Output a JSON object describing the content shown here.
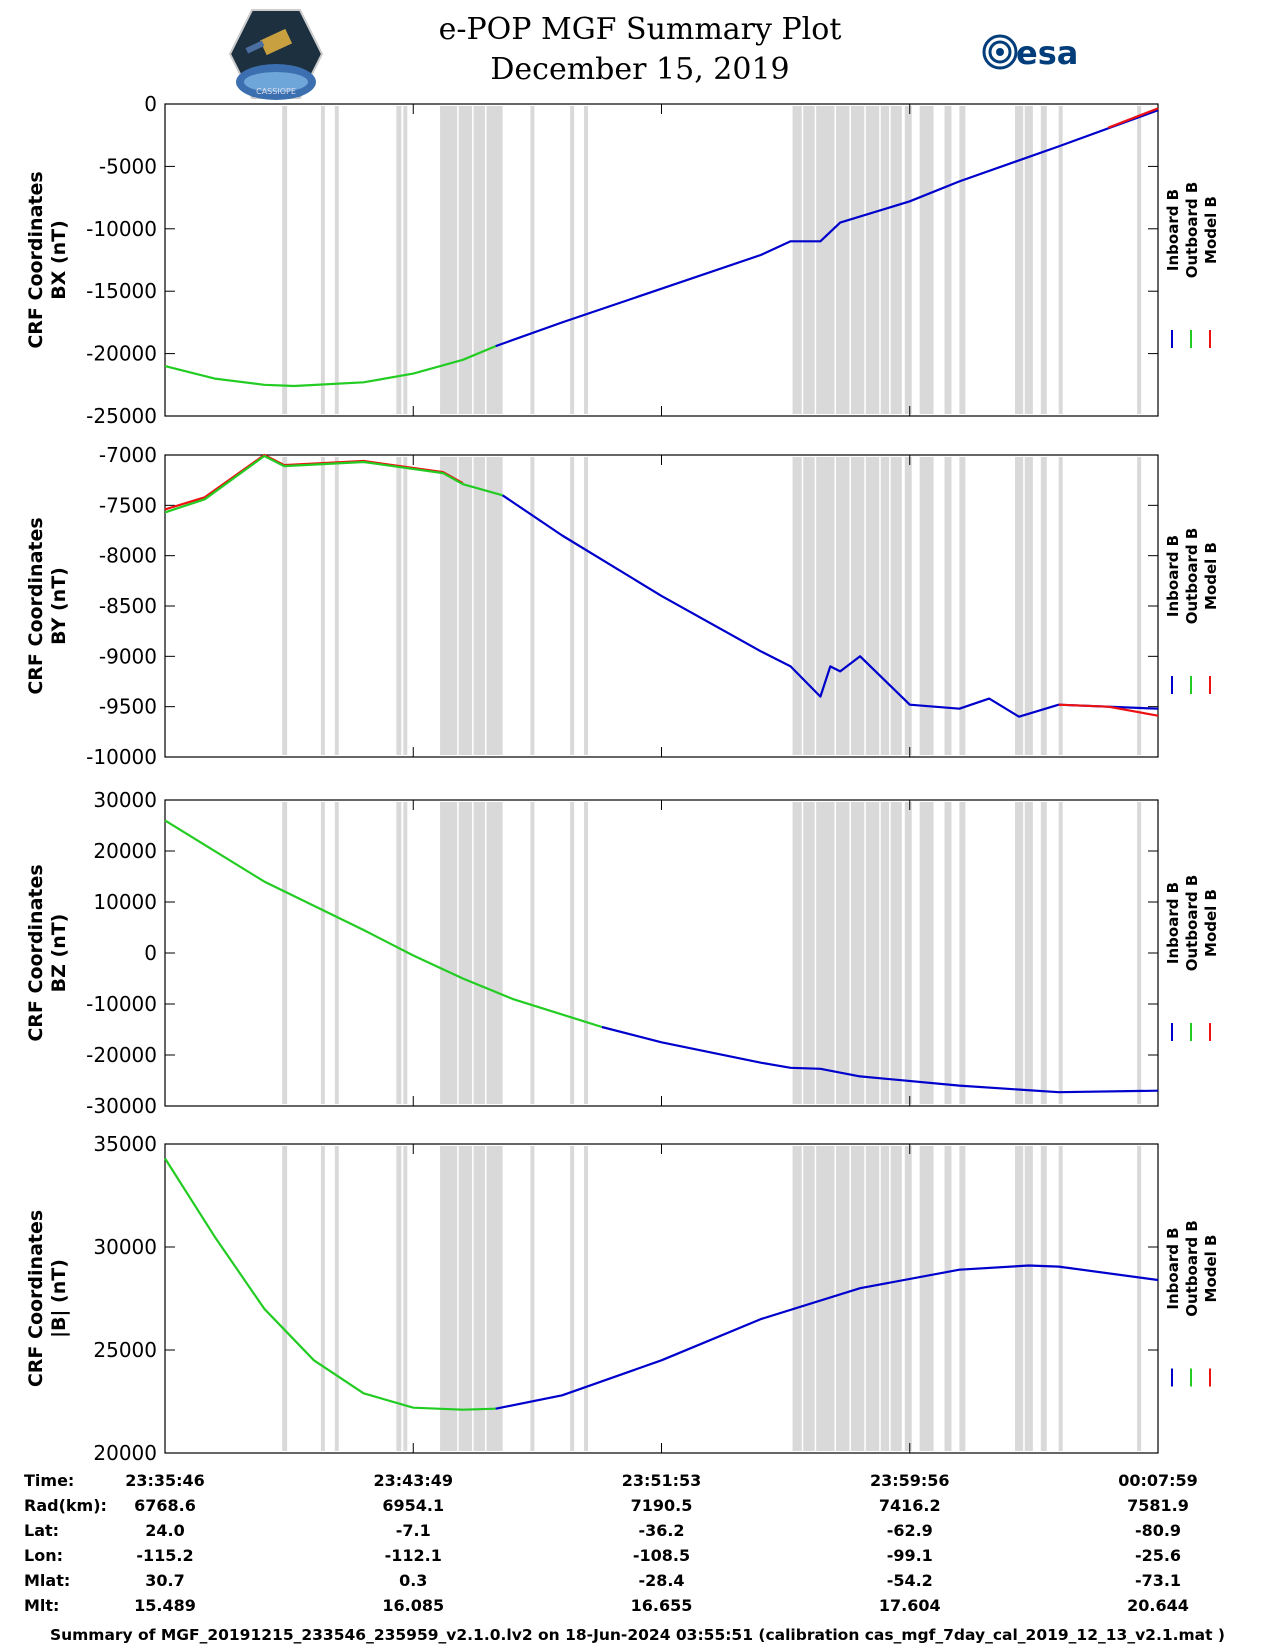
{
  "title": "e-POP MGF Summary Plot",
  "subtitle": "December 15, 2019",
  "logo_left_label": "CASSIOPE",
  "logo_right_label": "esa",
  "legend": {
    "labels": [
      "Inboard B",
      "Outboard B",
      "Model B"
    ],
    "colors": [
      "#0000cc",
      "#22cc22",
      "#ee1111"
    ]
  },
  "gap_color": "#d9d9d9",
  "chart_data": [
    {
      "type": "line",
      "ylabel_line1": "CRF Coordinates",
      "ylabel_line2": "BX (nT)",
      "ylim": [
        -25000,
        0
      ],
      "yticks": [
        "0",
        "-5000",
        "-10000",
        "-15000",
        "-20000",
        "-25000"
      ],
      "ytick_values": [
        0,
        -5000,
        -10000,
        -15000,
        -20000,
        -25000
      ],
      "series": [
        {
          "name": "Outboard B",
          "x": [
            0,
            0.05,
            0.1,
            0.13,
            0.2,
            0.25,
            0.3,
            0.333
          ],
          "y": [
            -21000,
            -22000,
            -22500,
            -22600,
            -22300,
            -21600,
            -20500,
            -19400
          ]
        },
        {
          "name": "Inboard B",
          "x": [
            0.333,
            0.4,
            0.5,
            0.6,
            0.63,
            0.66,
            0.68,
            0.75,
            0.8,
            0.9,
            1.0
          ],
          "y": [
            -19400,
            -17500,
            -14800,
            -12100,
            -11000,
            -11000,
            -9500,
            -7800,
            -6200,
            -3400,
            -500
          ]
        },
        {
          "name": "Model B",
          "x": [
            0.95,
            1.0
          ],
          "y": [
            -1900,
            -350
          ]
        }
      ]
    },
    {
      "type": "line",
      "ylabel_line1": "CRF Coordinates",
      "ylabel_line2": "BY (nT)",
      "ylim": [
        -10000,
        -7000
      ],
      "yticks": [
        "-7000",
        "-7500",
        "-8000",
        "-8500",
        "-9000",
        "-9500",
        "-10000"
      ],
      "ytick_values": [
        -7000,
        -7500,
        -8000,
        -8500,
        -9000,
        -9500,
        -10000
      ],
      "series": [
        {
          "name": "Model B",
          "x": [
            0,
            0.04,
            0.1,
            0.12,
            0.2,
            0.28,
            0.3
          ],
          "y": [
            -7540,
            -7420,
            -7000,
            -7100,
            -7060,
            -7170,
            -7280
          ]
        },
        {
          "name": "Outboard B",
          "x": [
            0,
            0.04,
            0.1,
            0.12,
            0.2,
            0.28,
            0.3,
            0.34
          ],
          "y": [
            -7570,
            -7440,
            -7010,
            -7110,
            -7070,
            -7180,
            -7290,
            -7400
          ]
        },
        {
          "name": "Inboard B",
          "x": [
            0.34,
            0.4,
            0.5,
            0.6,
            0.63,
            0.66,
            0.67,
            0.68,
            0.7,
            0.75,
            0.8,
            0.83,
            0.86,
            0.9,
            1.0
          ],
          "y": [
            -7400,
            -7800,
            -8400,
            -8950,
            -9100,
            -9400,
            -9100,
            -9150,
            -9000,
            -9480,
            -9520,
            -9420,
            -9600,
            -9480,
            -9520
          ]
        },
        {
          "name": "Model B",
          "x": [
            0.9,
            0.95,
            1.0
          ],
          "y": [
            -9480,
            -9500,
            -9590
          ]
        }
      ]
    },
    {
      "type": "line",
      "ylabel_line1": "CRF Coordinates",
      "ylabel_line2": "BZ (nT)",
      "ylim": [
        -30000,
        30000
      ],
      "yticks": [
        "30000",
        "20000",
        "10000",
        "0",
        "-10000",
        "-20000",
        "-30000"
      ],
      "ytick_values": [
        30000,
        20000,
        10000,
        0,
        -10000,
        -20000,
        -30000
      ],
      "series": [
        {
          "name": "Outboard B",
          "x": [
            0,
            0.1,
            0.2,
            0.25,
            0.3,
            0.35,
            0.44
          ],
          "y": [
            26000,
            14000,
            4500,
            -500,
            -5000,
            -9000,
            -14500
          ]
        },
        {
          "name": "Inboard B",
          "x": [
            0.44,
            0.5,
            0.6,
            0.63,
            0.66,
            0.7,
            0.8,
            0.9,
            1.0
          ],
          "y": [
            -14500,
            -17500,
            -21500,
            -22500,
            -22700,
            -24200,
            -26000,
            -27300,
            -27000
          ]
        }
      ]
    },
    {
      "type": "line",
      "ylabel_line1": "CRF Coordinates",
      "ylabel_line2": "|B| (nT)",
      "ylim": [
        20000,
        35000
      ],
      "yticks": [
        "35000",
        "30000",
        "25000",
        "20000"
      ],
      "ytick_values": [
        35000,
        30000,
        25000,
        20000
      ],
      "series": [
        {
          "name": "Outboard B",
          "x": [
            0,
            0.05,
            0.1,
            0.15,
            0.2,
            0.25,
            0.3,
            0.333
          ],
          "y": [
            34300,
            30500,
            27000,
            24500,
            22900,
            22200,
            22100,
            22150
          ]
        },
        {
          "name": "Inboard B",
          "x": [
            0.333,
            0.4,
            0.5,
            0.6,
            0.7,
            0.8,
            0.87,
            0.9,
            1.0
          ],
          "y": [
            22150,
            22800,
            24500,
            26500,
            28000,
            28900,
            29100,
            29050,
            28400
          ]
        }
      ]
    }
  ],
  "gap_bands_fraction": [
    [
      0.118,
      0.123
    ],
    [
      0.157,
      0.161
    ],
    [
      0.171,
      0.175
    ],
    [
      0.233,
      0.238
    ],
    [
      0.24,
      0.244
    ],
    [
      0.277,
      0.34
    ],
    [
      0.368,
      0.372
    ],
    [
      0.408,
      0.412
    ],
    [
      0.422,
      0.426
    ],
    [
      0.632,
      0.742
    ],
    [
      0.745,
      0.752
    ],
    [
      0.76,
      0.774
    ],
    [
      0.785,
      0.792
    ],
    [
      0.8,
      0.806
    ],
    [
      0.856,
      0.874
    ],
    [
      0.882,
      0.888
    ],
    [
      0.9,
      0.904
    ],
    [
      0.979,
      0.983
    ]
  ],
  "gap_lines_fraction": [
    0.295,
    0.31,
    0.323,
    0.642,
    0.655,
    0.675,
    0.69,
    0.705,
    0.72,
    0.73,
    0.865
  ],
  "time_info": {
    "rows": [
      {
        "label": "Time:",
        "values": [
          "23:35:46",
          "23:43:49",
          "23:51:53",
          "23:59:56",
          "00:07:59"
        ]
      },
      {
        "label": "Rad(km):",
        "values": [
          "6768.6",
          "6954.1",
          "7190.5",
          "7416.2",
          "7581.9"
        ]
      },
      {
        "label": "Lat:",
        "values": [
          "24.0",
          "-7.1",
          "-36.2",
          "-62.9",
          "-80.9"
        ]
      },
      {
        "label": "Lon:",
        "values": [
          "-115.2",
          "-112.1",
          "-108.5",
          "-99.1",
          "-25.6"
        ]
      },
      {
        "label": "Mlat:",
        "values": [
          "30.7",
          "0.3",
          "-28.4",
          "-54.2",
          "-73.1"
        ]
      },
      {
        "label": "Mlt:",
        "values": [
          "15.489",
          "16.085",
          "16.655",
          "17.604",
          "20.644"
        ]
      }
    ]
  },
  "footer": "Summary of MGF_20191215_233546_235959_v2.1.0.lv2 on 18-Jun-2024 03:55:51 (calibration cas_mgf_7day_cal_2019_12_13_v2.1.mat )"
}
